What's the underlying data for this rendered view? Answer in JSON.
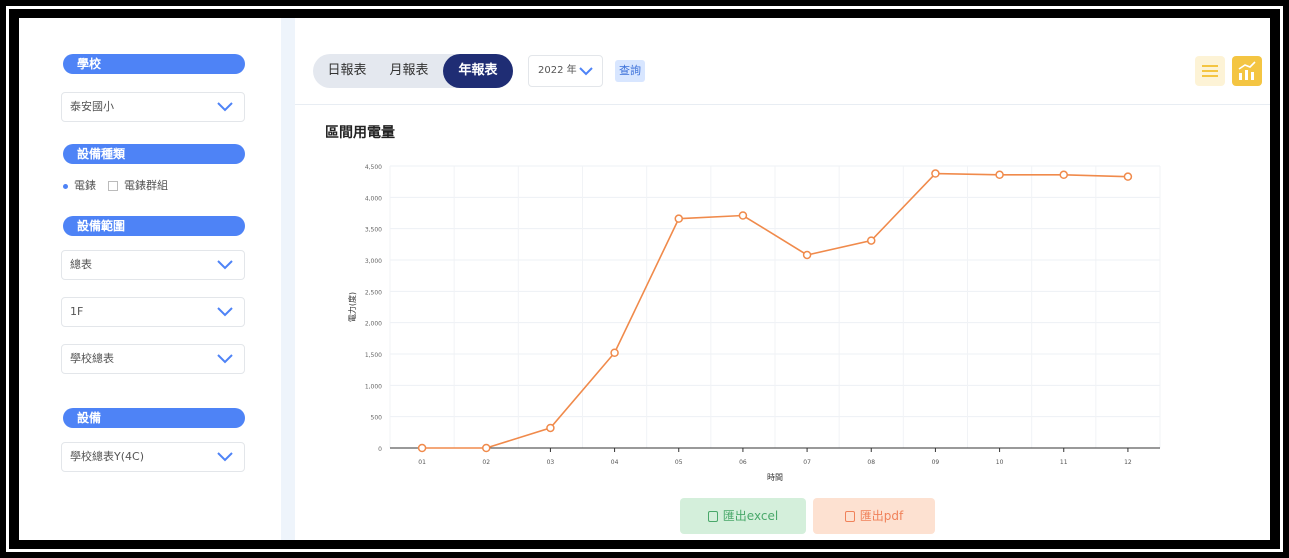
{
  "sidebar": {
    "school_label": "學校",
    "school_value": "泰安國小",
    "device_type_label": "設備種類",
    "radio_options": [
      "電錶",
      "電錶群組"
    ],
    "radio_selected": "電錶",
    "device_scope_label": "設備範圍",
    "scope_value_1": "總表",
    "scope_value_2": "1F",
    "scope_value_3": "學校總表",
    "device_label": "設備",
    "device_value": "學校總表Y(4C)"
  },
  "toolbar": {
    "tabs": [
      "日報表",
      "月報表",
      "年報表"
    ],
    "active_tab": "年報表",
    "year_value": "2022 年",
    "query_label": "查詢",
    "list_icon": "list-icon",
    "chart_icon": "chart-icon"
  },
  "export": {
    "excel_label": "匯出excel",
    "pdf_label": "匯出pdf"
  },
  "colors": {
    "accent": "#4e83f6",
    "active_tab": "#1f2d74",
    "line": "#f08a4b",
    "toolbar_icon": "#f4c542"
  },
  "chart_data": {
    "type": "line",
    "title": "區間用電量",
    "xlabel": "時間",
    "ylabel": "電力(度)",
    "categories": [
      "01",
      "02",
      "03",
      "04",
      "05",
      "06",
      "07",
      "08",
      "09",
      "10",
      "11",
      "12"
    ],
    "y_ticks": [
      "0",
      "500",
      "1,000",
      "1,500",
      "2,000",
      "2,500",
      "3,000",
      "3,500",
      "4,000",
      "4,500"
    ],
    "ylim": [
      0,
      4500
    ],
    "grid": true,
    "series": [
      {
        "values": [
          0,
          0,
          320,
          1520,
          3660,
          3710,
          3080,
          3310,
          4380,
          4360,
          4360,
          4330
        ]
      }
    ]
  }
}
